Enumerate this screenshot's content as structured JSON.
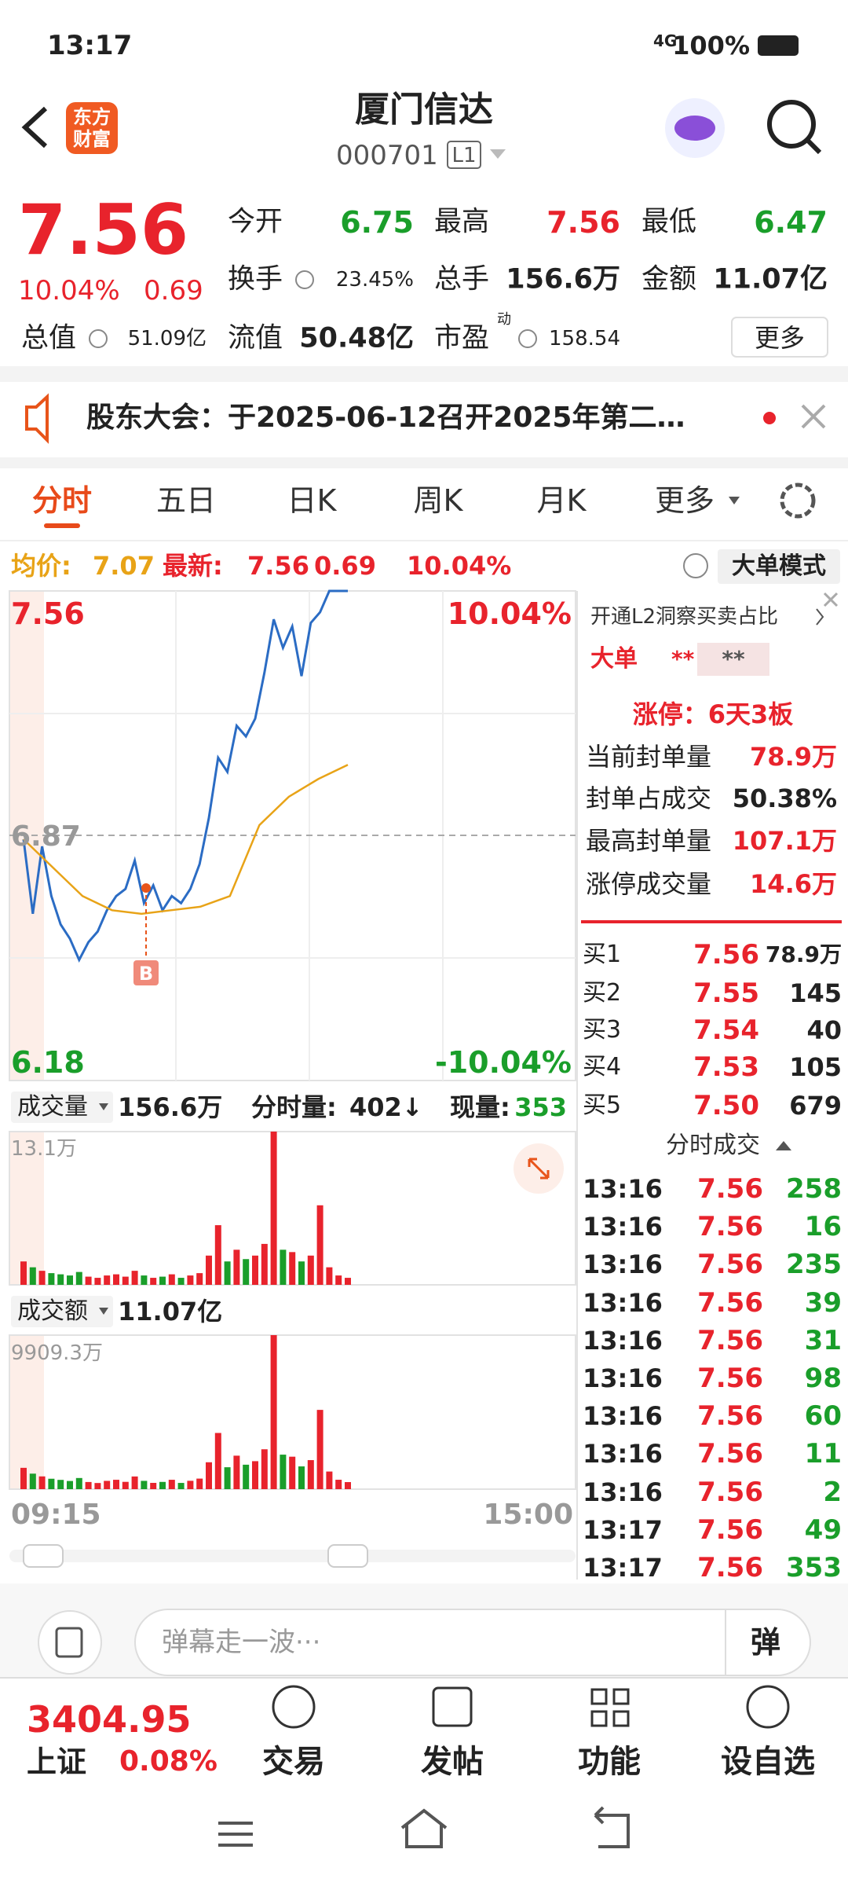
{
  "status_bar": {
    "time": "13:17",
    "network": "4G",
    "battery": "100%"
  },
  "header": {
    "logo": [
      "东方",
      "财富"
    ],
    "title": "厦门信达",
    "code": "000701",
    "level": "L1"
  },
  "quote": {
    "price": "7.56",
    "change_pct": "10.04%",
    "change": "0.69",
    "more_button": "更多",
    "stats": [
      {
        "label": "今开",
        "value": "6.75",
        "color": "#1a9e2a"
      },
      {
        "label": "最高",
        "value": "7.56",
        "color": "#e8232c"
      },
      {
        "label": "最低",
        "value": "6.47",
        "color": "#1a9e2a"
      },
      {
        "label": "换手",
        "value": "23.45%",
        "color": "#222"
      },
      {
        "label": "总手",
        "value": "156.6万",
        "color": "#222"
      },
      {
        "label": "金额",
        "value": "11.07亿",
        "color": "#222"
      },
      {
        "label": "总值",
        "value": "51.09亿",
        "color": "#222"
      },
      {
        "label": "流值",
        "value": "50.48亿",
        "color": "#222"
      },
      {
        "label": "市盈",
        "superscript": "动",
        "value": "158.54",
        "color": "#222"
      }
    ]
  },
  "notice": {
    "text": "股东大会：于2025-06-12召开2025年第二…"
  },
  "tabs": [
    "分时",
    "五日",
    "日K",
    "周K",
    "月K",
    "更多"
  ],
  "info": {
    "avg_label": "均价:",
    "avg": "7.07",
    "latest_label": "最新:",
    "latest": "7.56",
    "change": "0.69",
    "change_pct": "10.04%",
    "mode_button": "大单模式"
  },
  "price_chart": {
    "top": "7.56",
    "top_pct": "10.04%",
    "mid": "6.87",
    "bottom": "6.18",
    "bottom_pct": "-10.04%",
    "buy_marker": "B",
    "ylim": [
      6.18,
      7.56
    ],
    "price_line": [
      6.86,
      6.65,
      6.84,
      6.7,
      6.62,
      6.58,
      6.52,
      6.57,
      6.6,
      6.66,
      6.7,
      6.72,
      6.8,
      6.68,
      6.73,
      6.66,
      6.7,
      6.68,
      6.72,
      6.79,
      6.92,
      7.09,
      7.05,
      7.18,
      7.15,
      7.2,
      7.33,
      7.48,
      7.4,
      7.46,
      7.32,
      7.47,
      7.5,
      7.56,
      7.56,
      7.56
    ],
    "avg_line": [
      6.86,
      6.78,
      6.7,
      6.66,
      6.65,
      6.66,
      6.67,
      6.7,
      6.9,
      6.98,
      7.03,
      7.07
    ],
    "price_color": "#2b6cc4",
    "avg_color": "#e8a317"
  },
  "volume": {
    "label": "成交量",
    "total": "156.6万",
    "minute_label": "分时量:",
    "minute": "402↓",
    "now_label": "现量:",
    "now": "353",
    "max_label": "13.1万",
    "ylim": [
      0,
      13.1
    ],
    "values": [
      2.0,
      1.5,
      1.2,
      1.0,
      0.9,
      0.8,
      1.1,
      0.7,
      0.6,
      0.8,
      0.9,
      0.7,
      1.2,
      0.8,
      0.6,
      0.7,
      0.9,
      0.6,
      0.8,
      1.0,
      2.5,
      5.1,
      2.0,
      3.0,
      2.2,
      2.5,
      3.5,
      13.1,
      3.0,
      2.8,
      2.0,
      2.5,
      6.8,
      1.5,
      0.8,
      0.6
    ]
  },
  "amount": {
    "label": "成交额",
    "total": "11.07亿",
    "max_label": "9909.3万",
    "ylim": [
      0,
      9909.3
    ],
    "values": [
      1372,
      998,
      821,
      670,
      596,
      526,
      717,
      460,
      396,
      533,
      603,
      470,
      816,
      534,
      404,
      466,
      603,
      401,
      538,
      679,
      1730,
      3616,
      1410,
      2154,
      1573,
      1800,
      2566,
      9909.3,
      2220,
      2089,
      1464,
      1868,
      5100,
      1134,
      605,
      454
    ]
  },
  "time_axis": [
    "09:15",
    "15:00"
  ],
  "side": {
    "l2_link": "开通L2洞察买卖占比",
    "big_order": {
      "label": "大单",
      "buy": "**",
      "sell": "**"
    },
    "limit_up": "涨停：6天3板",
    "seal": [
      {
        "label": "当前封单量",
        "value": "78.9万"
      },
      {
        "label": "封单占成交",
        "value": "50.38%"
      },
      {
        "label": "最高封单量",
        "value": "107.1万"
      },
      {
        "label": "涨停成交量",
        "value": "14.6万"
      }
    ],
    "order_book": [
      [
        "买1",
        "7.56",
        "78.9万"
      ],
      [
        "买2",
        "7.55",
        "145"
      ],
      [
        "买3",
        "7.54",
        "40"
      ],
      [
        "买4",
        "7.53",
        "105"
      ],
      [
        "买5",
        "7.50",
        "679"
      ]
    ],
    "trades_title": "分时成交",
    "trades": [
      [
        "13:16",
        "7.56",
        "258"
      ],
      [
        "13:16",
        "7.56",
        "16"
      ],
      [
        "13:16",
        "7.56",
        "235"
      ],
      [
        "13:16",
        "7.56",
        "39"
      ],
      [
        "13:16",
        "7.56",
        "31"
      ],
      [
        "13:16",
        "7.56",
        "98"
      ],
      [
        "13:16",
        "7.56",
        "60"
      ],
      [
        "13:16",
        "7.56",
        "11"
      ],
      [
        "13:16",
        "7.56",
        "2"
      ],
      [
        "13:17",
        "7.56",
        "49"
      ],
      [
        "13:17",
        "7.56",
        "353"
      ]
    ]
  },
  "bottom": {
    "input_placeholder": "弹幕走一波···",
    "danmu_button": "弹",
    "index": {
      "value": "3404.95",
      "name": "上证",
      "change_pct": "0.08%"
    },
    "nav": [
      "交易",
      "发帖",
      "功能",
      "设自选"
    ]
  }
}
